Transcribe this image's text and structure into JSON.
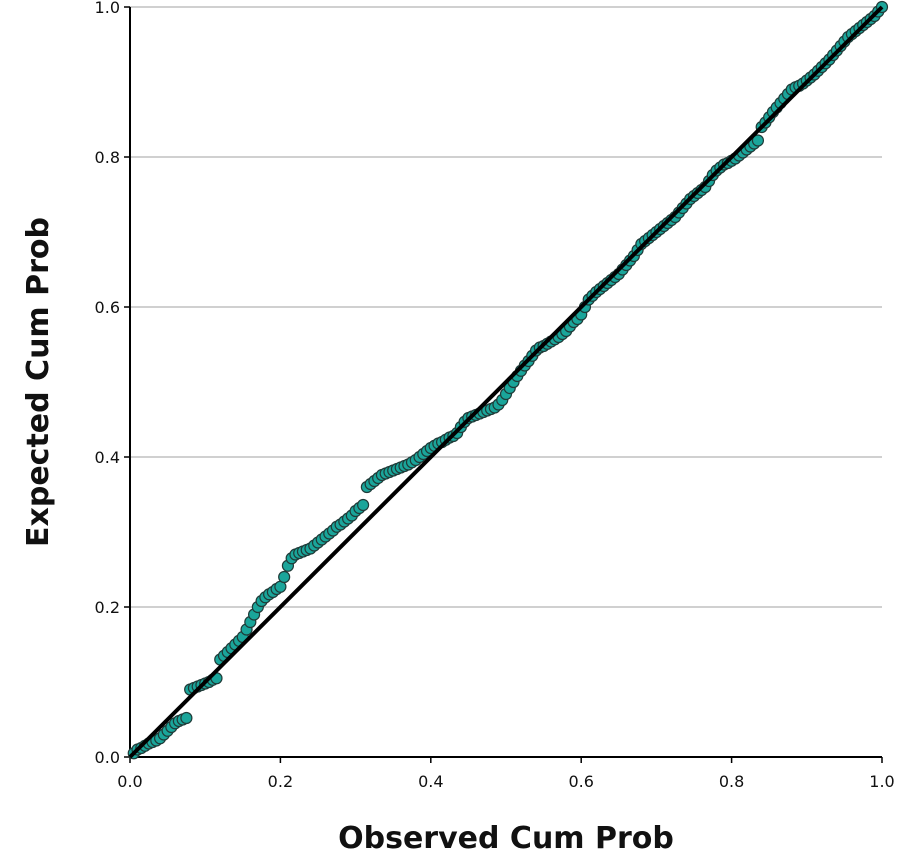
{
  "chart_data": {
    "type": "scatter",
    "title": "",
    "xlabel": "Observed Cum Prob",
    "ylabel": "Expected Cum Prob",
    "xlim": [
      0.0,
      1.0
    ],
    "ylim": [
      0.0,
      1.0
    ],
    "x_ticks": [
      "0.0",
      "0.2",
      "0.4",
      "0.6",
      "0.8",
      "1.0"
    ],
    "y_ticks": [
      "0.0",
      "0.2",
      "0.4",
      "0.6",
      "0.8",
      "1.0"
    ],
    "grid": "horizontal",
    "reference_line": {
      "from": [
        0.0,
        0.0
      ],
      "to": [
        1.0,
        1.0
      ]
    },
    "marker_color": "#1aa59a",
    "marker_edge_color": "#1f3b38",
    "line_color": "#000000",
    "grid_color": "#b3b3b3",
    "points": [
      [
        0.005,
        0.005
      ],
      [
        0.01,
        0.01
      ],
      [
        0.015,
        0.012
      ],
      [
        0.02,
        0.015
      ],
      [
        0.025,
        0.018
      ],
      [
        0.03,
        0.02
      ],
      [
        0.035,
        0.022
      ],
      [
        0.04,
        0.025
      ],
      [
        0.045,
        0.03
      ],
      [
        0.05,
        0.035
      ],
      [
        0.055,
        0.04
      ],
      [
        0.06,
        0.045
      ],
      [
        0.065,
        0.048
      ],
      [
        0.07,
        0.05
      ],
      [
        0.075,
        0.052
      ],
      [
        0.08,
        0.09
      ],
      [
        0.085,
        0.092
      ],
      [
        0.09,
        0.094
      ],
      [
        0.095,
        0.096
      ],
      [
        0.1,
        0.098
      ],
      [
        0.105,
        0.1
      ],
      [
        0.11,
        0.103
      ],
      [
        0.115,
        0.105
      ],
      [
        0.12,
        0.13
      ],
      [
        0.125,
        0.135
      ],
      [
        0.13,
        0.14
      ],
      [
        0.135,
        0.145
      ],
      [
        0.14,
        0.15
      ],
      [
        0.145,
        0.155
      ],
      [
        0.15,
        0.16
      ],
      [
        0.155,
        0.17
      ],
      [
        0.16,
        0.18
      ],
      [
        0.165,
        0.19
      ],
      [
        0.17,
        0.2
      ],
      [
        0.175,
        0.208
      ],
      [
        0.18,
        0.213
      ],
      [
        0.185,
        0.217
      ],
      [
        0.19,
        0.22
      ],
      [
        0.195,
        0.224
      ],
      [
        0.2,
        0.227
      ],
      [
        0.205,
        0.24
      ],
      [
        0.21,
        0.255
      ],
      [
        0.215,
        0.265
      ],
      [
        0.22,
        0.27
      ],
      [
        0.225,
        0.272
      ],
      [
        0.23,
        0.274
      ],
      [
        0.235,
        0.276
      ],
      [
        0.24,
        0.278
      ],
      [
        0.245,
        0.282
      ],
      [
        0.25,
        0.286
      ],
      [
        0.255,
        0.29
      ],
      [
        0.26,
        0.294
      ],
      [
        0.265,
        0.298
      ],
      [
        0.27,
        0.302
      ],
      [
        0.275,
        0.307
      ],
      [
        0.28,
        0.31
      ],
      [
        0.285,
        0.314
      ],
      [
        0.29,
        0.318
      ],
      [
        0.295,
        0.322
      ],
      [
        0.3,
        0.328
      ],
      [
        0.305,
        0.332
      ],
      [
        0.31,
        0.336
      ],
      [
        0.315,
        0.36
      ],
      [
        0.32,
        0.364
      ],
      [
        0.325,
        0.368
      ],
      [
        0.33,
        0.372
      ],
      [
        0.335,
        0.376
      ],
      [
        0.34,
        0.378
      ],
      [
        0.345,
        0.38
      ],
      [
        0.35,
        0.382
      ],
      [
        0.355,
        0.384
      ],
      [
        0.36,
        0.386
      ],
      [
        0.365,
        0.388
      ],
      [
        0.37,
        0.39
      ],
      [
        0.375,
        0.393
      ],
      [
        0.38,
        0.396
      ],
      [
        0.385,
        0.4
      ],
      [
        0.39,
        0.404
      ],
      [
        0.395,
        0.408
      ],
      [
        0.4,
        0.412
      ],
      [
        0.405,
        0.415
      ],
      [
        0.41,
        0.418
      ],
      [
        0.415,
        0.42
      ],
      [
        0.42,
        0.423
      ],
      [
        0.425,
        0.426
      ],
      [
        0.43,
        0.428
      ],
      [
        0.435,
        0.432
      ],
      [
        0.44,
        0.44
      ],
      [
        0.445,
        0.447
      ],
      [
        0.45,
        0.452
      ],
      [
        0.455,
        0.454
      ],
      [
        0.46,
        0.456
      ],
      [
        0.465,
        0.458
      ],
      [
        0.47,
        0.46
      ],
      [
        0.475,
        0.462
      ],
      [
        0.48,
        0.464
      ],
      [
        0.485,
        0.466
      ],
      [
        0.49,
        0.47
      ],
      [
        0.495,
        0.476
      ],
      [
        0.5,
        0.484
      ],
      [
        0.505,
        0.492
      ],
      [
        0.51,
        0.5
      ],
      [
        0.515,
        0.508
      ],
      [
        0.52,
        0.515
      ],
      [
        0.525,
        0.522
      ],
      [
        0.53,
        0.528
      ],
      [
        0.535,
        0.535
      ],
      [
        0.54,
        0.542
      ],
      [
        0.545,
        0.546
      ],
      [
        0.55,
        0.548
      ],
      [
        0.555,
        0.551
      ],
      [
        0.56,
        0.554
      ],
      [
        0.565,
        0.557
      ],
      [
        0.57,
        0.56
      ],
      [
        0.575,
        0.564
      ],
      [
        0.58,
        0.568
      ],
      [
        0.585,
        0.574
      ],
      [
        0.59,
        0.58
      ],
      [
        0.595,
        0.584
      ],
      [
        0.6,
        0.59
      ],
      [
        0.605,
        0.6
      ],
      [
        0.61,
        0.61
      ],
      [
        0.615,
        0.615
      ],
      [
        0.62,
        0.62
      ],
      [
        0.625,
        0.624
      ],
      [
        0.63,
        0.628
      ],
      [
        0.635,
        0.632
      ],
      [
        0.64,
        0.636
      ],
      [
        0.645,
        0.64
      ],
      [
        0.65,
        0.644
      ],
      [
        0.655,
        0.65
      ],
      [
        0.66,
        0.656
      ],
      [
        0.665,
        0.662
      ],
      [
        0.67,
        0.668
      ],
      [
        0.675,
        0.676
      ],
      [
        0.68,
        0.684
      ],
      [
        0.685,
        0.688
      ],
      [
        0.69,
        0.692
      ],
      [
        0.695,
        0.696
      ],
      [
        0.7,
        0.7
      ],
      [
        0.705,
        0.704
      ],
      [
        0.71,
        0.708
      ],
      [
        0.715,
        0.712
      ],
      [
        0.72,
        0.716
      ],
      [
        0.725,
        0.72
      ],
      [
        0.73,
        0.726
      ],
      [
        0.735,
        0.732
      ],
      [
        0.74,
        0.738
      ],
      [
        0.745,
        0.744
      ],
      [
        0.75,
        0.748
      ],
      [
        0.755,
        0.752
      ],
      [
        0.76,
        0.756
      ],
      [
        0.765,
        0.76
      ],
      [
        0.77,
        0.768
      ],
      [
        0.775,
        0.776
      ],
      [
        0.78,
        0.782
      ],
      [
        0.785,
        0.786
      ],
      [
        0.79,
        0.79
      ],
      [
        0.795,
        0.792
      ],
      [
        0.8,
        0.795
      ],
      [
        0.805,
        0.798
      ],
      [
        0.81,
        0.802
      ],
      [
        0.815,
        0.806
      ],
      [
        0.82,
        0.81
      ],
      [
        0.825,
        0.814
      ],
      [
        0.83,
        0.818
      ],
      [
        0.835,
        0.822
      ],
      [
        0.84,
        0.84
      ],
      [
        0.845,
        0.846
      ],
      [
        0.85,
        0.853
      ],
      [
        0.855,
        0.86
      ],
      [
        0.86,
        0.866
      ],
      [
        0.865,
        0.872
      ],
      [
        0.87,
        0.878
      ],
      [
        0.875,
        0.884
      ],
      [
        0.88,
        0.89
      ],
      [
        0.885,
        0.893
      ],
      [
        0.89,
        0.895
      ],
      [
        0.895,
        0.898
      ],
      [
        0.9,
        0.902
      ],
      [
        0.905,
        0.906
      ],
      [
        0.91,
        0.91
      ],
      [
        0.915,
        0.915
      ],
      [
        0.92,
        0.92
      ],
      [
        0.925,
        0.925
      ],
      [
        0.93,
        0.93
      ],
      [
        0.935,
        0.936
      ],
      [
        0.94,
        0.942
      ],
      [
        0.945,
        0.948
      ],
      [
        0.95,
        0.954
      ],
      [
        0.955,
        0.96
      ],
      [
        0.96,
        0.964
      ],
      [
        0.965,
        0.968
      ],
      [
        0.97,
        0.972
      ],
      [
        0.975,
        0.976
      ],
      [
        0.98,
        0.98
      ],
      [
        0.985,
        0.984
      ],
      [
        0.99,
        0.988
      ],
      [
        0.995,
        0.994
      ],
      [
        1.0,
        1.0
      ]
    ]
  }
}
